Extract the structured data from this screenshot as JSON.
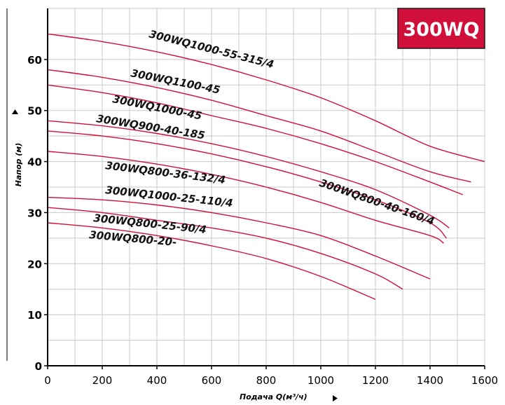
{
  "chart_data": {
    "type": "line",
    "title": "",
    "badge": "300WQ",
    "xlabel": "Подача Q(м³/ч)",
    "ylabel": "Напор (м)",
    "xlim": [
      0,
      1600
    ],
    "ylim": [
      0,
      70
    ],
    "x_ticks": [
      0,
      200,
      400,
      600,
      800,
      1000,
      1200,
      1400,
      1600
    ],
    "y_ticks": [
      0,
      10,
      20,
      30,
      40,
      50,
      60
    ],
    "grid": true,
    "colors": {
      "curve": "#d0103a",
      "badge_bg": "#d0103a",
      "grid": "#c8c8c8"
    },
    "series": [
      {
        "name": "300WQ1000-55-315/4",
        "x": [
          0,
          200,
          400,
          600,
          800,
          1000,
          1200,
          1400,
          1600
        ],
        "y": [
          65,
          63.5,
          61.5,
          59,
          56,
          52.5,
          48,
          43,
          40
        ]
      },
      {
        "name": "300WQ1100-45",
        "x": [
          0,
          200,
          400,
          600,
          800,
          1000,
          1200,
          1400,
          1550
        ],
        "y": [
          58,
          56.5,
          54.5,
          52,
          49,
          46,
          42,
          38,
          36
        ]
      },
      {
        "name": "300WQ1000-45",
        "x": [
          0,
          200,
          400,
          600,
          800,
          1000,
          1200,
          1400,
          1520
        ],
        "y": [
          55,
          53.5,
          51.5,
          49,
          46.5,
          43.5,
          40,
          36,
          33.5
        ]
      },
      {
        "name": "300WQ900-40-185",
        "x": [
          0,
          200,
          400,
          600,
          800,
          1000,
          1200,
          1400,
          1470
        ],
        "y": [
          48,
          47,
          45.5,
          43.5,
          41,
          38,
          34.5,
          29.5,
          27
        ]
      },
      {
        "name": "300WQ800-40-160/4",
        "x": [
          0,
          200,
          400,
          600,
          800,
          1000,
          1200,
          1400,
          1460
        ],
        "y": [
          46,
          45,
          43.5,
          41.5,
          39,
          36,
          32.5,
          28,
          25
        ]
      },
      {
        "name": "300WQ800-36-132/4",
        "x": [
          0,
          200,
          400,
          600,
          800,
          1000,
          1200,
          1400,
          1450
        ],
        "y": [
          42,
          41,
          39.5,
          37.5,
          35,
          32,
          28.5,
          25.5,
          24
        ]
      },
      {
        "name": "300WQ1000-25-110/4",
        "x": [
          0,
          200,
          400,
          600,
          800,
          1000,
          1200,
          1400
        ],
        "y": [
          33,
          32.5,
          31.5,
          30,
          28,
          25.5,
          21.5,
          17
        ]
      },
      {
        "name": "300WQ800-25-90/4",
        "x": [
          0,
          200,
          400,
          600,
          800,
          1000,
          1200,
          1300
        ],
        "y": [
          31,
          30,
          28.5,
          27,
          25,
          22,
          18,
          15
        ]
      },
      {
        "name": "300WQ800-20-",
        "x": [
          0,
          200,
          400,
          600,
          800,
          1000,
          1200
        ],
        "y": [
          28,
          27,
          25.5,
          23.5,
          21,
          17.5,
          13
        ]
      }
    ]
  }
}
